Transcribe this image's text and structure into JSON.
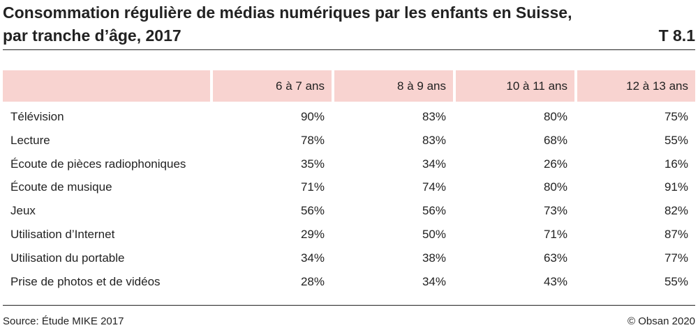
{
  "header": {
    "title_line1": "Consommation régulière de médias numériques par les enfants en Suisse,",
    "title_line2": "par tranche d’âge, 2017",
    "table_id": "T 8.1"
  },
  "table": {
    "columns": [
      "",
      "6 à 7 ans",
      "8 à 9 ans",
      "10 à 11 ans",
      "12 à 13 ans"
    ],
    "rows": [
      {
        "label": "Télévision",
        "values": [
          "90%",
          "83%",
          "80%",
          "75%"
        ]
      },
      {
        "label": "Lecture",
        "values": [
          "78%",
          "83%",
          "68%",
          "55%"
        ]
      },
      {
        "label": "Écoute de pièces radiophoniques",
        "values": [
          "35%",
          "34%",
          "26%",
          "16%"
        ]
      },
      {
        "label": "Écoute de musique",
        "values": [
          "71%",
          "74%",
          "80%",
          "91%"
        ]
      },
      {
        "label": "Jeux",
        "values": [
          "56%",
          "56%",
          "73%",
          "82%"
        ]
      },
      {
        "label": "Utilisation d’Internet",
        "values": [
          "29%",
          "50%",
          "71%",
          "87%"
        ]
      },
      {
        "label": "Utilisation du portable",
        "values": [
          "34%",
          "38%",
          "63%",
          "77%"
        ]
      },
      {
        "label": "Prise de photos et de vidéos",
        "values": [
          "28%",
          "34%",
          "43%",
          "55%"
        ]
      }
    ]
  },
  "footer": {
    "source": "Source: Étude MIKE 2017",
    "copyright": "© Obsan 2020"
  },
  "colors": {
    "header_fill": "#f8d3d0",
    "text": "#222222",
    "rule": "#222222"
  }
}
